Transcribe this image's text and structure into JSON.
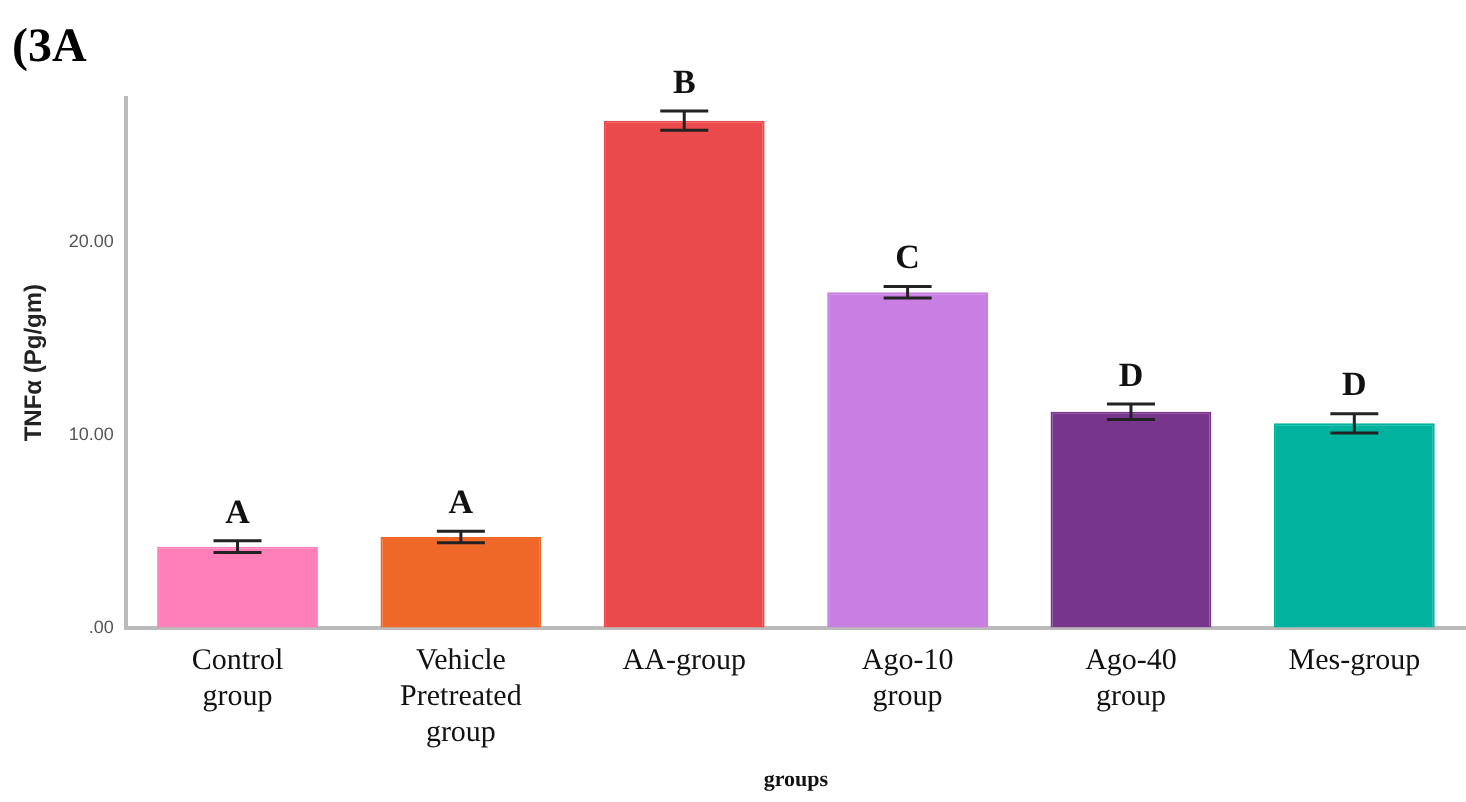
{
  "chart_data": {
    "type": "bar",
    "title": "(3A",
    "xlabel": "groups",
    "ylabel": "TNFα (Pg/gm)",
    "categories": [
      "Control group",
      "Vehicle Pretreated group",
      "AA-group",
      "Ago-10 group",
      "Ago-40 group",
      "Mes-group"
    ],
    "values": [
      4.2,
      4.7,
      26.3,
      17.4,
      11.2,
      10.6
    ],
    "colors": [
      "#ff80b8",
      "#f06828",
      "#ea4a4c",
      "#c97ee2",
      "#77368c",
      "#00b39e"
    ],
    "errors": [
      0.3,
      0.3,
      0.5,
      0.3,
      0.4,
      0.5
    ],
    "ylim": [
      0,
      27.5
    ],
    "yticks": [
      {
        "value": 0,
        "label": ".00"
      },
      {
        "value": 10,
        "label": "10.00"
      },
      {
        "value": 20,
        "label": "20.00"
      }
    ],
    "annotations": [
      {
        "text": "A",
        "x": "Control group",
        "y": 4.5
      },
      {
        "text": "A",
        "x": "Vehicle Pretreated group",
        "y": 5.0
      },
      {
        "text": "B",
        "x": "AA-group",
        "y": 26.8
      },
      {
        "text": "C",
        "x": "Ago-10 group",
        "y": 17.7
      },
      {
        "text": "D",
        "x": "Ago-40 group",
        "y": 11.6
      },
      {
        "text": "D",
        "x": "Mes-group",
        "y": 11.1
      }
    ],
    "grid": false,
    "legend": false
  }
}
